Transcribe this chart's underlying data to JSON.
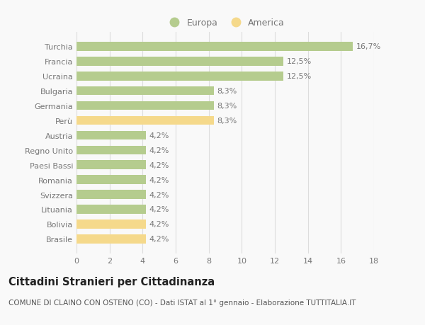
{
  "categories": [
    "Brasile",
    "Bolivia",
    "Lituania",
    "Svizzera",
    "Romania",
    "Paesi Bassi",
    "Regno Unito",
    "Austria",
    "Perù",
    "Germania",
    "Bulgaria",
    "Ucraina",
    "Francia",
    "Turchia"
  ],
  "values": [
    4.2,
    4.2,
    4.2,
    4.2,
    4.2,
    4.2,
    4.2,
    4.2,
    8.3,
    8.3,
    8.3,
    12.5,
    12.5,
    16.7
  ],
  "labels": [
    "4,2%",
    "4,2%",
    "4,2%",
    "4,2%",
    "4,2%",
    "4,2%",
    "4,2%",
    "4,2%",
    "8,3%",
    "8,3%",
    "8,3%",
    "12,5%",
    "12,5%",
    "16,7%"
  ],
  "colors": [
    "#f5d98b",
    "#f5d98b",
    "#b5cc8e",
    "#b5cc8e",
    "#b5cc8e",
    "#b5cc8e",
    "#b5cc8e",
    "#b5cc8e",
    "#f5d98b",
    "#b5cc8e",
    "#b5cc8e",
    "#b5cc8e",
    "#b5cc8e",
    "#b5cc8e"
  ],
  "europa_color": "#b5cc8e",
  "america_color": "#f5d98b",
  "title": "Cittadini Stranieri per Cittadinanza",
  "subtitle": "COMUNE DI CLAINO CON OSTENO (CO) - Dati ISTAT al 1° gennaio - Elaborazione TUTTITALIA.IT",
  "xlim": [
    0,
    18
  ],
  "xticks": [
    0,
    2,
    4,
    6,
    8,
    10,
    12,
    14,
    16,
    18
  ],
  "background_color": "#f9f9f9",
  "grid_color": "#dddddd",
  "bar_height": 0.6,
  "title_fontsize": 10.5,
  "subtitle_fontsize": 7.5,
  "tick_fontsize": 8,
  "label_fontsize": 8,
  "legend_fontsize": 9
}
